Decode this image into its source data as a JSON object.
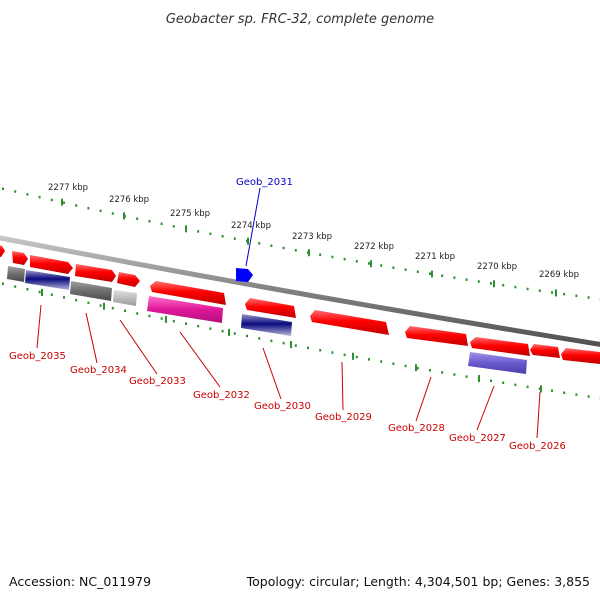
{
  "title": "Geobacter sp. FRC-32, complete genome",
  "footer": {
    "accession": "Accession: NC_011979",
    "topology": "Topology: circular; Length: 4,304,501 bp; Genes: 3,855"
  },
  "colors": {
    "backbone": "#8c8c8c",
    "ticks": "#2f8f2f",
    "forward_gene": "#ff0000",
    "reverse_gene": "#ff0000",
    "label_red": "#cc0000",
    "label_blue": "#0000cc",
    "highlight": "#0000ff",
    "magenta": "#e0189a",
    "grey": "#707070",
    "light_grey": "#c0c0c0",
    "navy": "#0a0a80",
    "purple": "#6a5acd"
  },
  "kbp_labels": [
    "2277 kbp",
    "2276 kbp",
    "2275 kbp",
    "2274 kbp",
    "2273 kbp",
    "2272 kbp",
    "2271 kbp",
    "2270 kbp",
    "2269 kbp"
  ],
  "gene_labels": [
    {
      "name": "Geob_2031",
      "color": "blue"
    },
    {
      "name": "Geob_2035",
      "color": "red"
    },
    {
      "name": "Geob_2034",
      "color": "red"
    },
    {
      "name": "Geob_2033",
      "color": "red"
    },
    {
      "name": "Geob_2032",
      "color": "red"
    },
    {
      "name": "Geob_2030",
      "color": "red"
    },
    {
      "name": "Geob_2029",
      "color": "red"
    },
    {
      "name": "Geob_2028",
      "color": "red"
    },
    {
      "name": "Geob_2027",
      "color": "red"
    },
    {
      "name": "Geob_2026",
      "color": "red"
    }
  ]
}
